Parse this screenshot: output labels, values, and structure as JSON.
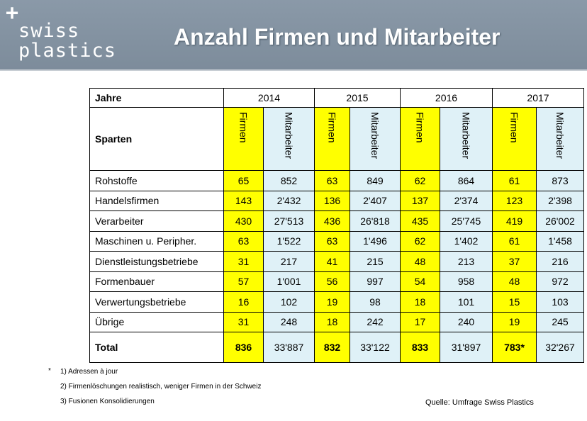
{
  "header": {
    "logo_plus": "+",
    "logo_line1": "swiss",
    "logo_line2": "plastics",
    "title": "Anzahl Firmen und Mitarbeiter"
  },
  "table": {
    "year_header": "Jahre",
    "sparten_header": "Sparten",
    "years": [
      "2014",
      "2015",
      "2016",
      "2017"
    ],
    "col_firmen": "Firmen",
    "col_mitarbeiter": "Mitarbeiter",
    "rows": [
      {
        "label": "Rohstoffe",
        "values": [
          "65",
          "852",
          "63",
          "849",
          "62",
          "864",
          "61",
          "873"
        ]
      },
      {
        "label": "Handelsfirmen",
        "values": [
          "143",
          "2'432",
          "136",
          "2'407",
          "137",
          "2'374",
          "123",
          "2'398"
        ]
      },
      {
        "label": "Verarbeiter",
        "values": [
          "430",
          "27'513",
          "436",
          "26'818",
          "435",
          "25'745",
          "419",
          "26'002"
        ]
      },
      {
        "label": "Maschinen u. Peripher.",
        "values": [
          "63",
          "1'522",
          "63",
          "1'496",
          "62",
          "1'402",
          "61",
          "1'458"
        ]
      },
      {
        "label": "Dienstleistungsbetriebe",
        "values": [
          "31",
          "217",
          "41",
          "215",
          "48",
          "213",
          "37",
          "216"
        ]
      },
      {
        "label": "Formenbauer",
        "values": [
          "57",
          "1'001",
          "56",
          "997",
          "54",
          "958",
          "48",
          "972"
        ]
      },
      {
        "label": "Verwertungsbetriebe",
        "values": [
          "16",
          "102",
          "19",
          "98",
          "18",
          "101",
          "15",
          "103"
        ]
      },
      {
        "label": "Übrige",
        "values": [
          "31",
          "248",
          "18",
          "242",
          "17",
          "240",
          "19",
          "245"
        ]
      }
    ],
    "total": {
      "label": "Total",
      "values": [
        "836",
        "33'887",
        "832",
        "33'122",
        "833",
        "31'897",
        "783*",
        "32'267"
      ]
    }
  },
  "footnotes": {
    "marker": "*",
    "items": [
      "1) Adressen à jour",
      "2) Firmenlöschungen realistisch, weniger Firmen in der Schweiz",
      "3) Fusionen Konsolidierungen"
    ]
  },
  "source": "Quelle: Umfrage Swiss Plastics",
  "colors": {
    "header_bg": "#7d8c9b",
    "firmen_bg": "#ffff00",
    "mitarbeiter_bg": "#dff1f7"
  }
}
